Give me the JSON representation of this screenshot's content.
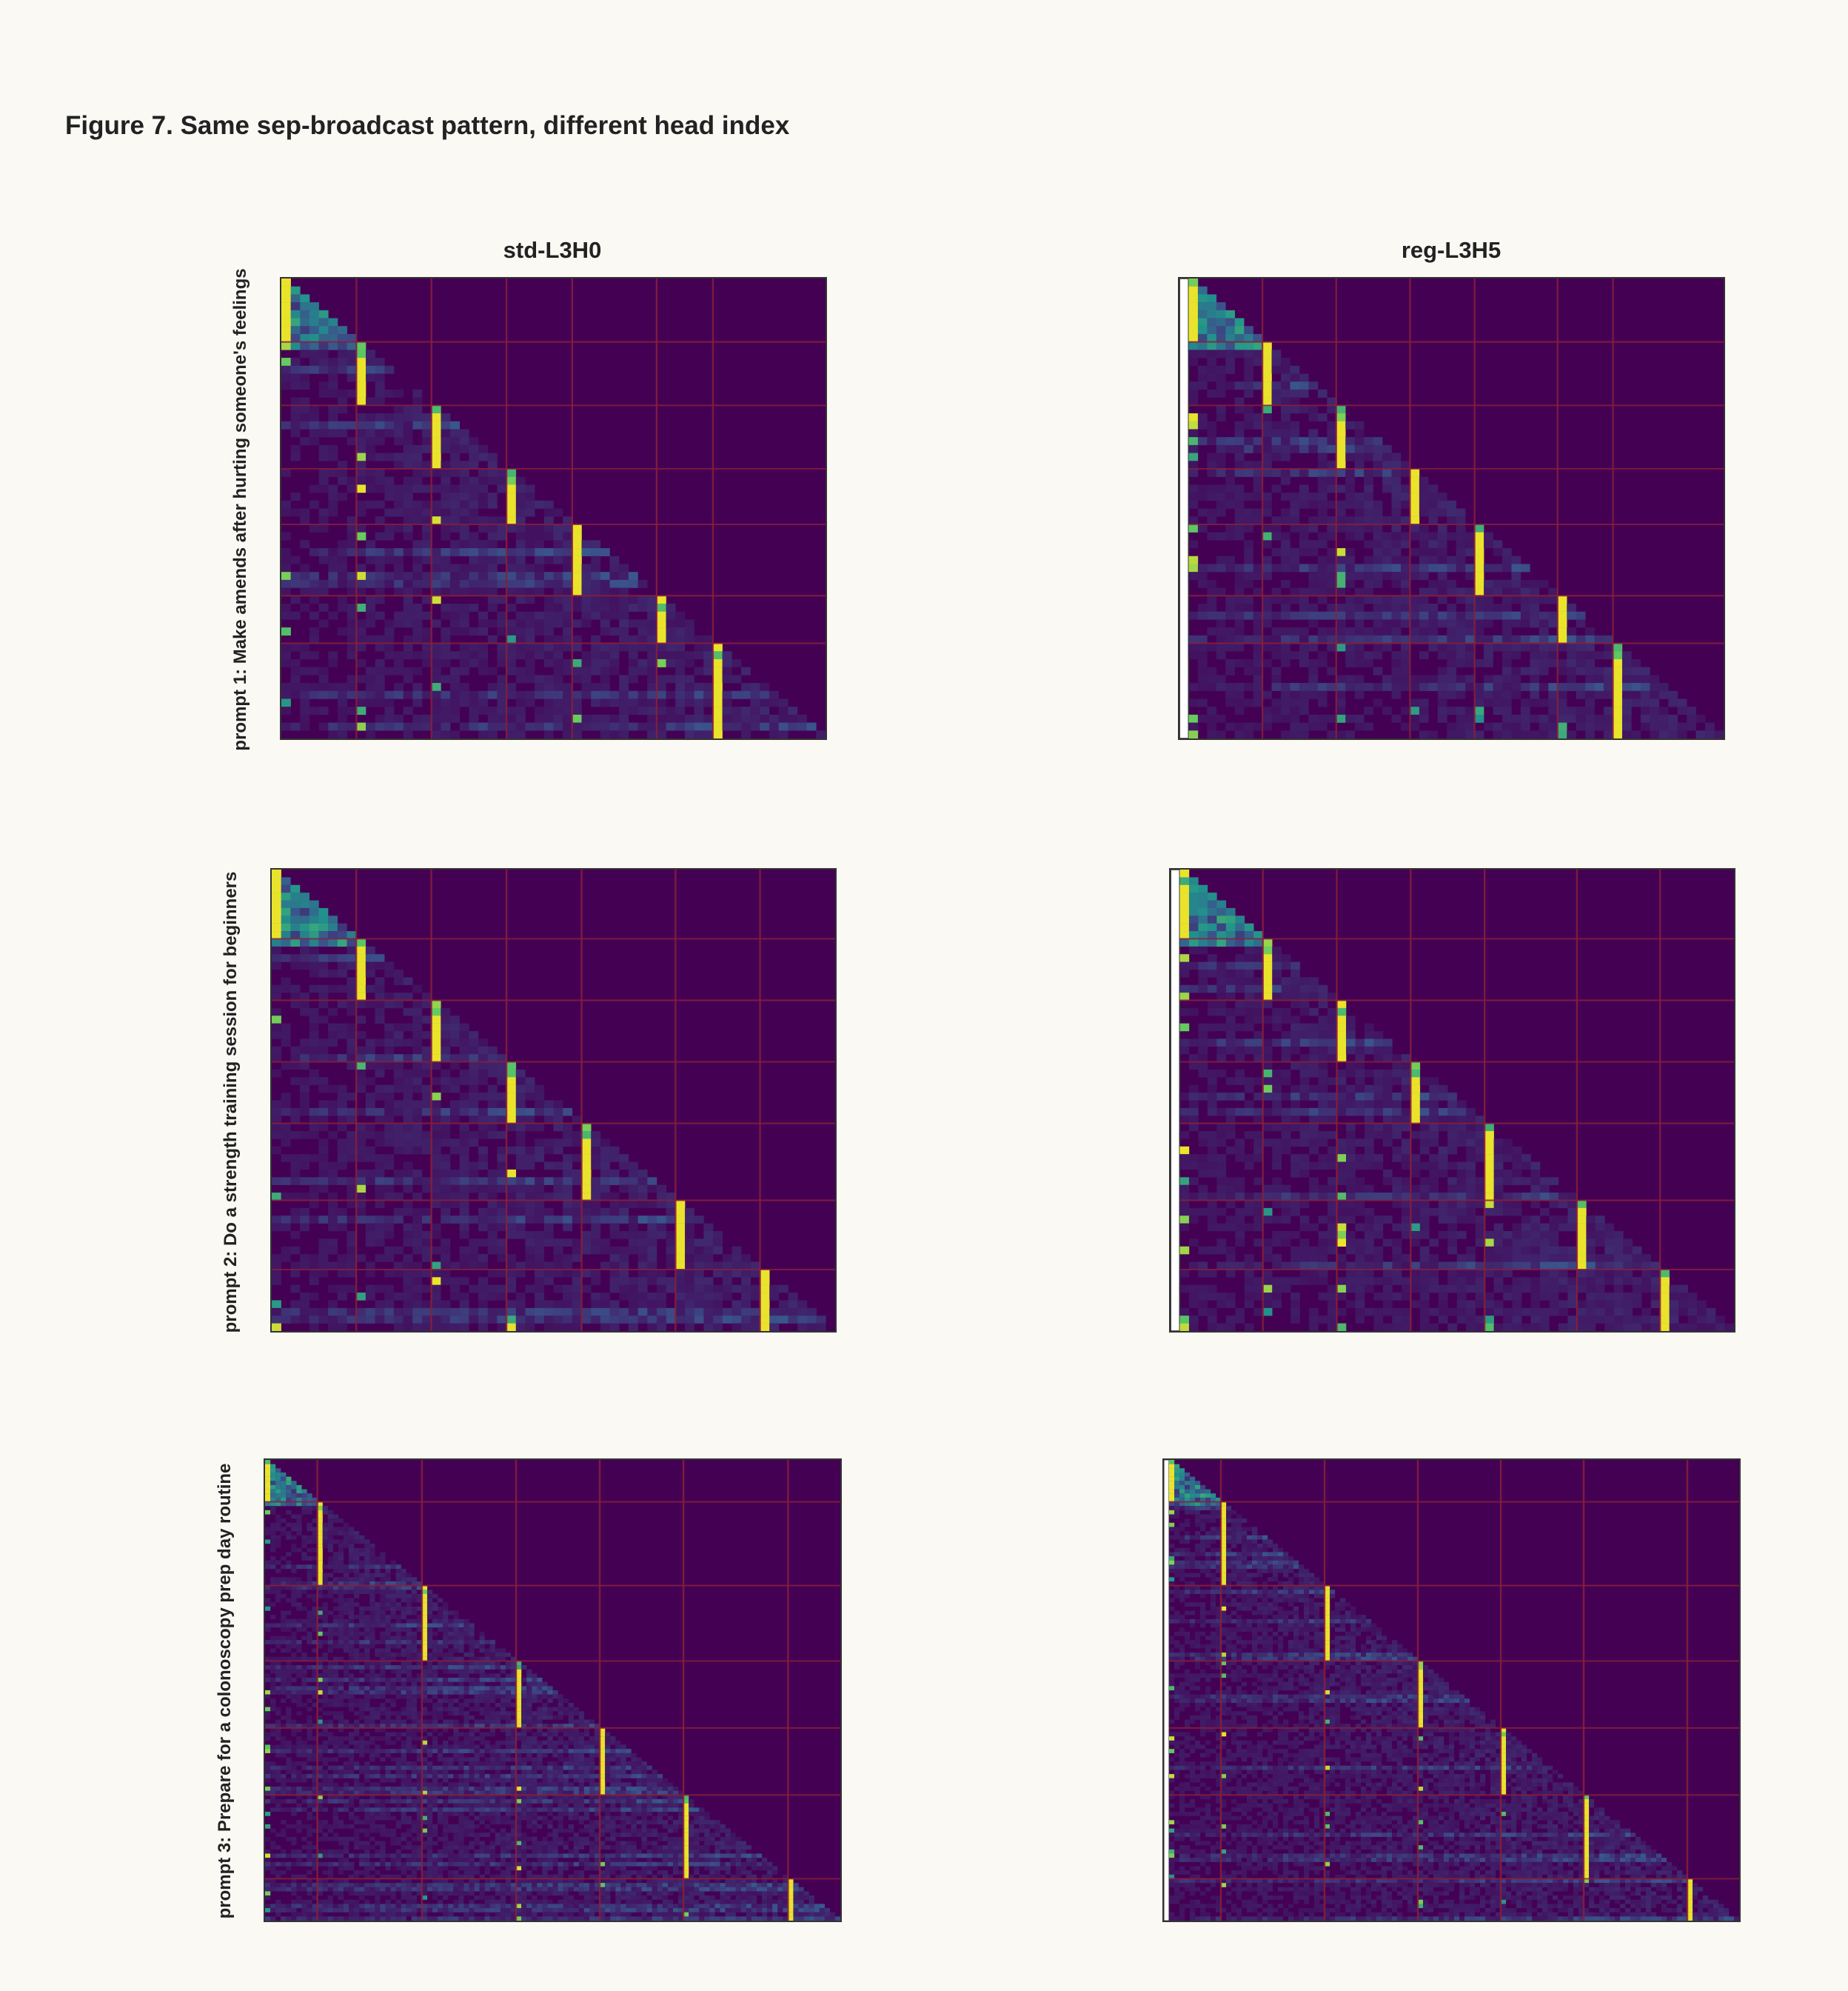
{
  "figure": {
    "title": "Figure 7. Same sep-broadcast pattern, different head index",
    "columns": [
      "std-L3H0",
      "reg-L3H5"
    ],
    "rows": [
      "prompt 1: Make amends after hurting someone's feelings",
      "prompt 2: Do a strength training session for beginners",
      "prompt 3: Prepare for a colonoscopy prep day routine"
    ]
  },
  "colors": {
    "background": "#faf9f4",
    "heatmap_low": "#440154",
    "heatmap_high": "#fde725",
    "separator_grid": "#8b1f3a",
    "register_column": "#ffffff"
  },
  "chart_data": [
    {
      "type": "heatmap",
      "title": "std-L3H0",
      "row_label": "prompt 1: Make amends after hurting someone's feelings",
      "colormap": "viridis",
      "n_tokens": 58,
      "register_columns": 0,
      "segment_breaks": [
        0,
        8,
        16,
        24,
        31,
        40,
        46,
        58
      ],
      "sep_broadcast": true,
      "grid": true
    },
    {
      "type": "heatmap",
      "title": "reg-L3H5",
      "row_label": "prompt 1: Make amends after hurting someone's feelings",
      "colormap": "viridis",
      "n_tokens": 58,
      "register_columns": 1,
      "segment_breaks": [
        0,
        8,
        16,
        24,
        31,
        40,
        46,
        58
      ],
      "sep_broadcast": true,
      "grid": true
    },
    {
      "type": "heatmap",
      "title": "std-L3H0",
      "row_label": "prompt 2: Do a strength training session for beginners",
      "colormap": "viridis",
      "n_tokens": 60,
      "register_columns": 0,
      "segment_breaks": [
        0,
        9,
        17,
        25,
        33,
        43,
        52,
        60
      ],
      "sep_broadcast": true,
      "grid": true
    },
    {
      "type": "heatmap",
      "title": "reg-L3H5",
      "row_label": "prompt 2: Do a strength training session for beginners",
      "colormap": "viridis",
      "n_tokens": 60,
      "register_columns": 1,
      "segment_breaks": [
        0,
        9,
        17,
        25,
        33,
        43,
        52,
        60
      ],
      "sep_broadcast": true,
      "grid": true
    },
    {
      "type": "heatmap",
      "title": "std-L3H0",
      "row_label": "prompt 3: Prepare for a colonoscopy prep day routine",
      "colormap": "viridis",
      "n_tokens": 110,
      "register_columns": 0,
      "segment_breaks": [
        0,
        10,
        30,
        48,
        64,
        80,
        100,
        110
      ],
      "sep_broadcast": true,
      "grid": true
    },
    {
      "type": "heatmap",
      "title": "reg-L3H5",
      "row_label": "prompt 3: Prepare for a colonoscopy prep day routine",
      "colormap": "viridis",
      "n_tokens": 110,
      "register_columns": 1,
      "segment_breaks": [
        0,
        10,
        30,
        48,
        64,
        80,
        100,
        110
      ],
      "sep_broadcast": true,
      "grid": true
    }
  ]
}
